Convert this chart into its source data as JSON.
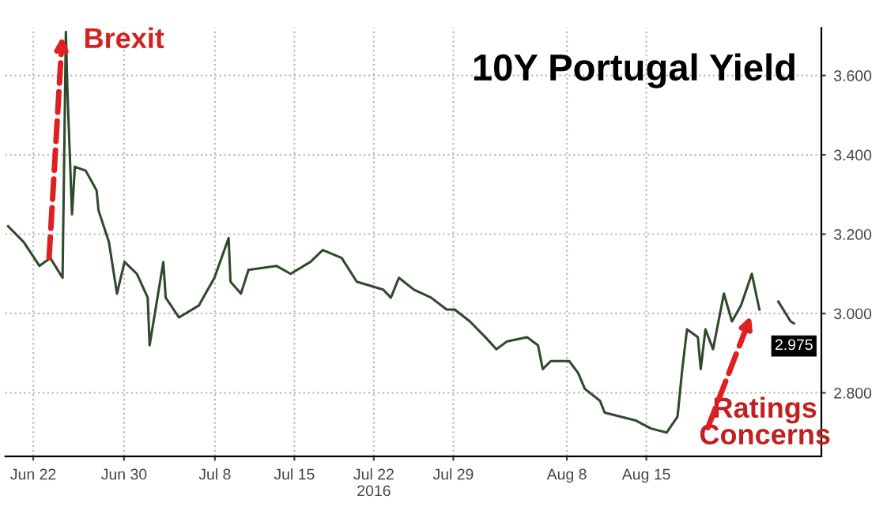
{
  "chart_data": {
    "type": "line",
    "title": "10Y Portugal Yield",
    "xlim": [
      "2016-06-19T13:00",
      "2016-08-30T10:00"
    ],
    "xticks": [
      {
        "value": "2016-06-22",
        "label": "Jun 22"
      },
      {
        "value": "2016-06-30",
        "label": "Jun 30"
      },
      {
        "value": "2016-07-08",
        "label": "Jul 8"
      },
      {
        "value": "2016-07-15",
        "label": "Jul 15"
      },
      {
        "value": "2016-07-22",
        "label": "Jul 22\n2016"
      },
      {
        "value": "2016-07-29",
        "label": "Jul 29"
      },
      {
        "value": "2016-08-08",
        "label": "Aug 8"
      },
      {
        "value": "2016-08-15",
        "label": "Aug 15"
      }
    ],
    "ylim": [
      2.64,
      3.72
    ],
    "yticks": [
      {
        "value": 2.8,
        "label": "2.800"
      },
      {
        "value": 3.0,
        "label": "3.000"
      },
      {
        "value": 3.2,
        "label": "3.200"
      },
      {
        "value": 3.4,
        "label": "3.400"
      },
      {
        "value": 3.6,
        "label": "3.600"
      }
    ],
    "grid": true,
    "legend": false,
    "marker": "none",
    "line_style": "solid",
    "annotations": [
      {
        "text": "Brexit",
        "x": "2016-06-24T21:00",
        "y": 3.71
      },
      {
        "text": "Ratings\nConcerns",
        "x": "2016-08-24T07:00",
        "y": 3.0
      }
    ],
    "series": [
      {
        "color": "#2f4a2a",
        "x": [
          "2016-06-19T19:00",
          "2016-06-21T04:00",
          "2016-06-22T13:00",
          "2016-06-23T12:00",
          "2016-06-24T14:00",
          "2016-06-24T21:00",
          "2016-06-25T00:00",
          "2016-06-25T10:00",
          "2016-06-25T16:00",
          "2016-06-26T15:00",
          "2016-06-27T14:00",
          "2016-06-27T18:00",
          "2016-06-28T16:00",
          "2016-06-29T09:00",
          "2016-06-30T01:00",
          "2016-07-01T03:00",
          "2016-07-02T02:00",
          "2016-07-02T06:00",
          "2016-07-03T11:00",
          "2016-07-03T16:00",
          "2016-07-04T20:00",
          "2016-07-06T14:00",
          "2016-07-07T23:00",
          "2016-07-09T05:00",
          "2016-07-09T09:00",
          "2016-07-10T07:00",
          "2016-07-10T23:00",
          "2016-07-13T10:00",
          "2016-07-14T16:00",
          "2016-07-16T10:00",
          "2016-07-17T12:00",
          "2016-07-19T04:00",
          "2016-07-20T12:00",
          "2016-07-22T20:00",
          "2016-07-23T12:00",
          "2016-07-24T05:00",
          "2016-07-25T13:00",
          "2016-07-27T01:00",
          "2016-07-28T10:00",
          "2016-07-29T03:00",
          "2016-07-30T11:00",
          "2016-07-31T20:00",
          "2016-08-01T19:00",
          "2016-08-02T18:00",
          "2016-08-04T12:00",
          "2016-08-05T11:00",
          "2016-08-05T21:00",
          "2016-08-06T14:00",
          "2016-08-08T05:00",
          "2016-08-09T00:00",
          "2016-08-09T14:00",
          "2016-08-10T22:00",
          "2016-08-11T08:00",
          "2016-08-12T17:00",
          "2016-08-14T02:00",
          "2016-08-15T10:00",
          "2016-08-16T19:00",
          "2016-08-17T18:00",
          "2016-08-18T04:00",
          "2016-08-18T14:00",
          "2016-08-19T13:00",
          "2016-08-19T19:00",
          "2016-08-20T05:00",
          "2016-08-20T21:00",
          "2016-08-21T20:00",
          "2016-08-22T13:00",
          "2016-08-23T08:00",
          "2016-08-24T07:00",
          "2016-08-24T23:00",
          "2016-08-25T20:00",
          "2016-08-26T15:00",
          "2016-08-27T17:00",
          "2016-08-28T00:00"
        ],
        "values": [
          3.22,
          3.18,
          3.12,
          3.14,
          3.09,
          3.71,
          3.57,
          3.25,
          3.37,
          3.36,
          3.31,
          3.26,
          3.18,
          3.05,
          3.13,
          3.1,
          3.04,
          2.92,
          3.13,
          3.04,
          2.99,
          3.02,
          3.09,
          3.19,
          3.08,
          3.05,
          3.11,
          3.12,
          3.1,
          3.13,
          3.16,
          3.14,
          3.08,
          3.06,
          3.04,
          3.09,
          3.06,
          3.04,
          3.01,
          3.01,
          2.98,
          2.94,
          2.91,
          2.93,
          2.94,
          2.92,
          2.86,
          2.88,
          2.88,
          2.85,
          2.81,
          2.78,
          2.75,
          2.74,
          2.73,
          2.71,
          2.7,
          2.74,
          2.86,
          2.96,
          2.94,
          2.86,
          2.96,
          2.91,
          3.05,
          2.98,
          3.02,
          3.1,
          3.01,
          null,
          3.03,
          2.98,
          2.975
        ],
        "value_labels": [
          null,
          null,
          null,
          null,
          null,
          null,
          null,
          null,
          null,
          null,
          null,
          null,
          null,
          null,
          null,
          null,
          null,
          null,
          null,
          null,
          null,
          null,
          null,
          null,
          null,
          null,
          null,
          null,
          null,
          null,
          null,
          null,
          null,
          null,
          null,
          null,
          null,
          null,
          null,
          null,
          null,
          null,
          null,
          null,
          null,
          null,
          null,
          null,
          null,
          null,
          null,
          null,
          null,
          null,
          null,
          null,
          null,
          null,
          null,
          null,
          null,
          null,
          null,
          null,
          null,
          null,
          null,
          null,
          null,
          null,
          null,
          null,
          "2.975"
        ]
      }
    ]
  }
}
